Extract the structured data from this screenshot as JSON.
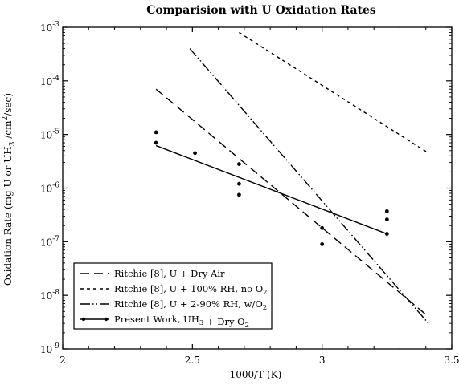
{
  "chart_data": {
    "type": "line",
    "title": "Comparision with U Oxidation Rates",
    "xlabel": "1000/T (K)",
    "ylabel": "Oxidation Rate (mg U or UH3 /cm2/sec)",
    "xlim": [
      2,
      3.5
    ],
    "ylim_log10": [
      -9,
      -3
    ],
    "y_scale": "log",
    "x_ticks": [
      2,
      2.5,
      3,
      3.5
    ],
    "x_tick_labels": [
      "2",
      "2.5",
      "3",
      "3.5"
    ],
    "y_ticks_log10": [
      -9,
      -8,
      -7,
      -6,
      -5,
      -4,
      -3
    ],
    "y_tick_labels": [
      "10-9",
      "10-8",
      "10-7",
      "10-6",
      "10-5",
      "10-4",
      "10-3"
    ],
    "grid": false,
    "legend_position": "bottom-left",
    "series": [
      {
        "name": "Ritchie [8], U + Dry Air",
        "style": "long-dash",
        "x": [
          2.36,
          3.41
        ],
        "y": [
          7e-05,
          4e-09
        ]
      },
      {
        "name": "Ritchie [8], U + 100% RH, no O2",
        "style": "short-dash",
        "x": [
          2.68,
          3.41
        ],
        "y": [
          0.0008,
          4.5e-06
        ]
      },
      {
        "name": "Ritchie [8], U + 2-90% RH, w/O2",
        "style": "dash-dot-dot",
        "x": [
          2.49,
          3.41
        ],
        "y": [
          0.0004,
          3e-09
        ]
      },
      {
        "name": "Present Work, UH3 + Dry O2",
        "style": "solid-with-points",
        "x": [
          2.36,
          3.25
        ],
        "y": [
          6.2e-06,
          1.4e-07
        ],
        "points_x": [
          2.36,
          2.36,
          2.51,
          2.68,
          2.68,
          2.68,
          3.0,
          3.0,
          3.25,
          3.25,
          3.25
        ],
        "points_y": [
          1.1e-05,
          7e-06,
          4.5e-06,
          2.8e-06,
          1.2e-06,
          7.5e-07,
          1.8e-07,
          9e-08,
          3.7e-07,
          2.6e-07,
          1.4e-07
        ]
      }
    ]
  }
}
